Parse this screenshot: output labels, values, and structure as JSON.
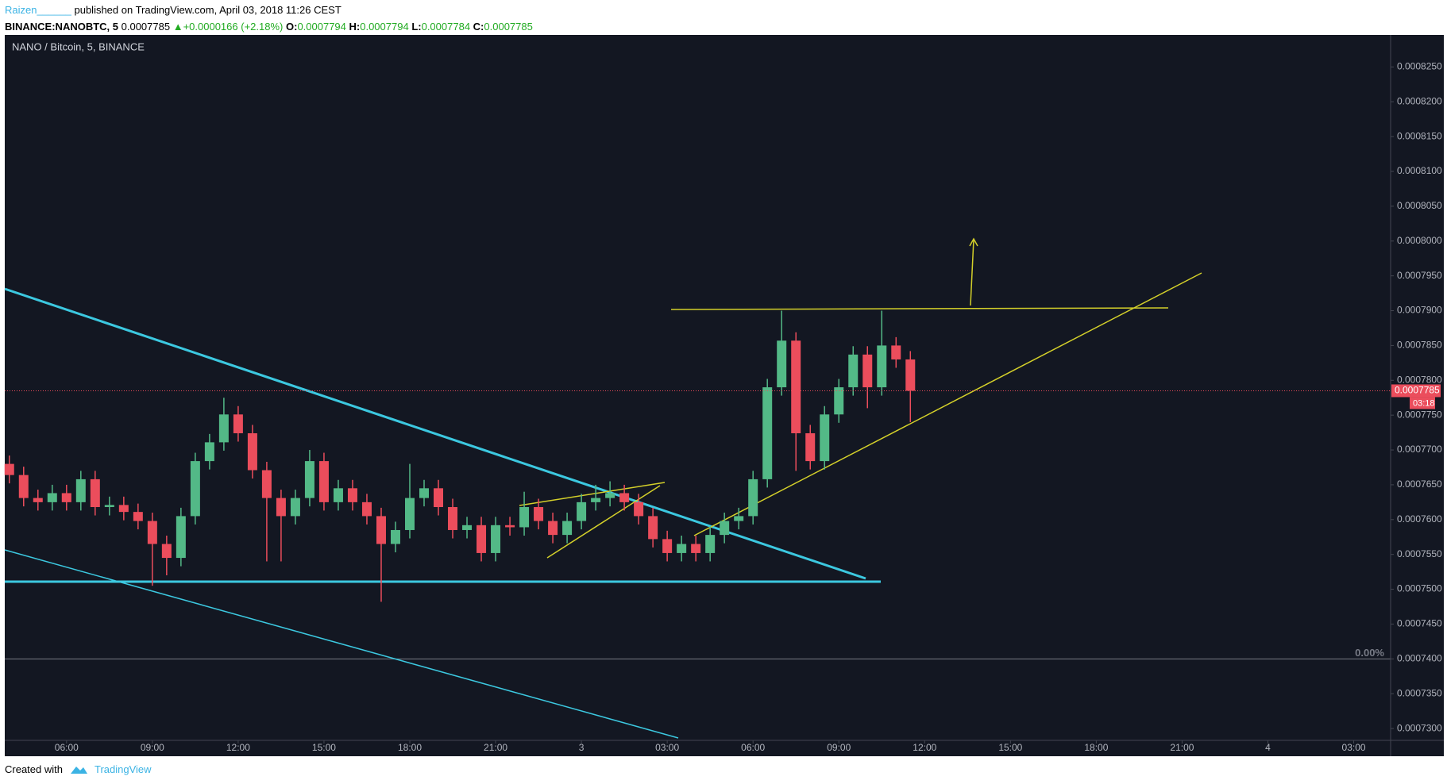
{
  "header": {
    "author": "Raizen______",
    "published": "published on TradingView.com, April 03, 2018 11:26 CEST",
    "symbol": "BINANCE:NANOBTC, 5",
    "last": "0.0007785",
    "arrow": "▲",
    "change": "+0.0000166 (+2.18%)",
    "o_label": "O:",
    "o": "0.0007794",
    "h_label": "H:",
    "h": "0.0007794",
    "l_label": "L:",
    "l": "0.0007784",
    "c_label": "C:",
    "c": "0.0007785"
  },
  "chart_data": {
    "type": "candlestick",
    "title": "NANO / Bitcoin, 5, BINANCE",
    "up_color": "#53b987",
    "down_color": "#eb4d5c",
    "x": [
      4.0,
      4.5,
      5.0,
      5.5,
      6.0,
      6.5,
      7.0,
      7.5,
      8.0,
      8.5,
      9.0,
      9.5,
      10.0,
      10.5,
      11.0,
      11.5,
      12.0,
      12.5,
      13.0,
      13.5,
      14.0,
      14.5,
      15.0,
      15.5,
      16.0,
      16.5,
      17.0,
      17.5,
      18.0,
      18.5,
      19.0,
      19.5,
      20.0,
      20.5,
      21.0,
      21.5,
      22.0,
      22.5,
      23.0,
      23.5,
      24.0,
      24.5,
      25.0,
      25.5,
      26.0,
      26.5,
      27.0,
      27.5,
      28.0,
      28.5,
      29.0,
      29.5,
      30.0,
      30.5,
      31.0,
      31.5,
      32.0,
      32.5,
      33.0,
      33.5,
      34.0,
      34.5,
      35.0,
      35.5
    ],
    "open": [
      0.000768,
      0.0007664,
      0.0007631,
      0.0007625,
      0.0007638,
      0.0007625,
      0.0007658,
      0.0007618,
      0.0007621,
      0.0007611,
      0.0007598,
      0.0007565,
      0.0007545,
      0.0007605,
      0.0007684,
      0.0007711,
      0.0007751,
      0.0007724,
      0.0007671,
      0.0007631,
      0.0007605,
      0.0007631,
      0.0007684,
      0.0007625,
      0.0007645,
      0.0007625,
      0.0007605,
      0.0007565,
      0.0007585,
      0.0007631,
      0.0007645,
      0.0007618,
      0.0007585,
      0.0007592,
      0.0007552,
      0.0007592,
      0.0007589,
      0.0007618,
      0.0007598,
      0.0007578,
      0.0007598,
      0.0007625,
      0.0007631,
      0.0007638,
      0.0007625,
      0.0007605,
      0.0007572,
      0.0007552,
      0.0007565,
      0.0007552,
      0.0007578,
      0.0007598,
      0.0007605,
      0.0007658,
      0.000779,
      0.0007857,
      0.0007724,
      0.0007684,
      0.0007751,
      0.000779,
      0.0007837,
      0.000779,
      0.000785,
      0.000783
    ],
    "high": [
      0.0007692,
      0.0007676,
      0.0007643,
      0.000765,
      0.000765,
      0.000767,
      0.000767,
      0.0007633,
      0.0007633,
      0.0007623,
      0.000761,
      0.0007577,
      0.0007617,
      0.0007696,
      0.0007723,
      0.0007775,
      0.0007763,
      0.0007736,
      0.0007683,
      0.0007643,
      0.0007643,
      0.00077,
      0.0007696,
      0.0007657,
      0.0007657,
      0.0007637,
      0.0007617,
      0.0007597,
      0.000768,
      0.0007657,
      0.0007657,
      0.000763,
      0.0007604,
      0.0007604,
      0.0007604,
      0.0007604,
      0.000764,
      0.000763,
      0.000761,
      0.000761,
      0.0007637,
      0.000765,
      0.0007655,
      0.000765,
      0.0007637,
      0.0007617,
      0.0007584,
      0.0007577,
      0.0007577,
      0.000759,
      0.000761,
      0.0007617,
      0.000767,
      0.0007802,
      0.00079,
      0.0007869,
      0.0007736,
      0.0007763,
      0.0007802,
      0.0007849,
      0.0007849,
      0.00079,
      0.0007862,
      0.0007842
    ],
    "low": [
      0.0007652,
      0.0007619,
      0.0007613,
      0.0007613,
      0.0007613,
      0.0007613,
      0.0007606,
      0.0007606,
      0.0007599,
      0.0007586,
      0.0007505,
      0.000752,
      0.0007533,
      0.0007593,
      0.0007672,
      0.0007699,
      0.0007712,
      0.0007659,
      0.000754,
      0.000754,
      0.0007593,
      0.0007619,
      0.0007613,
      0.0007613,
      0.0007613,
      0.0007593,
      0.0007482,
      0.0007553,
      0.0007573,
      0.0007619,
      0.0007606,
      0.0007573,
      0.0007573,
      0.000754,
      0.000754,
      0.0007577,
      0.0007577,
      0.0007586,
      0.0007566,
      0.0007566,
      0.0007586,
      0.0007613,
      0.0007619,
      0.0007613,
      0.0007593,
      0.000756,
      0.000754,
      0.000754,
      0.000754,
      0.000754,
      0.0007566,
      0.0007586,
      0.0007593,
      0.0007646,
      0.0007778,
      0.000767,
      0.0007672,
      0.0007672,
      0.0007739,
      0.0007778,
      0.000776,
      0.0007778,
      0.0007818,
      0.000774
    ],
    "close": [
      0.0007664,
      0.0007631,
      0.0007625,
      0.0007638,
      0.0007625,
      0.0007658,
      0.0007618,
      0.0007621,
      0.0007611,
      0.0007598,
      0.0007565,
      0.0007545,
      0.0007605,
      0.0007684,
      0.0007711,
      0.0007751,
      0.0007724,
      0.0007671,
      0.0007631,
      0.0007605,
      0.0007631,
      0.0007684,
      0.0007625,
      0.0007645,
      0.0007625,
      0.0007605,
      0.0007565,
      0.0007585,
      0.0007631,
      0.0007645,
      0.0007618,
      0.0007585,
      0.0007592,
      0.0007552,
      0.0007592,
      0.0007589,
      0.0007618,
      0.0007598,
      0.0007578,
      0.0007598,
      0.0007625,
      0.0007631,
      0.0007638,
      0.0007625,
      0.0007605,
      0.0007572,
      0.0007552,
      0.0007565,
      0.0007552,
      0.0007578,
      0.0007598,
      0.0007605,
      0.0007658,
      0.000779,
      0.0007857,
      0.0007724,
      0.0007684,
      0.0007751,
      0.000779,
      0.0007837,
      0.000779,
      0.000785,
      0.000783,
      0.0007785
    ],
    "xlim": [
      3.84,
      52.29
    ],
    "xticks": [
      {
        "value": 6,
        "label": "06:00"
      },
      {
        "value": 9,
        "label": "09:00"
      },
      {
        "value": 12,
        "label": "12:00"
      },
      {
        "value": 15,
        "label": "15:00"
      },
      {
        "value": 18,
        "label": "18:00"
      },
      {
        "value": 21,
        "label": "21:00"
      },
      {
        "value": 24,
        "label": "3"
      },
      {
        "value": 27,
        "label": "03:00"
      },
      {
        "value": 30,
        "label": "06:00"
      },
      {
        "value": 33,
        "label": "09:00"
      },
      {
        "value": 36,
        "label": "12:00"
      },
      {
        "value": 39,
        "label": "15:00"
      },
      {
        "value": 42,
        "label": "18:00"
      },
      {
        "value": 45,
        "label": "21:00"
      },
      {
        "value": 48,
        "label": "4"
      },
      {
        "value": 51,
        "label": "03:00"
      }
    ],
    "ylim": [
      0.0007283,
      0.0008296
    ],
    "yticks": [
      {
        "value": 0.00073,
        "label": "0.0007300"
      },
      {
        "value": 0.000735,
        "label": "0.0007350"
      },
      {
        "value": 0.00074,
        "label": "0.0007400"
      },
      {
        "value": 0.000745,
        "label": "0.0007450"
      },
      {
        "value": 0.00075,
        "label": "0.0007500"
      },
      {
        "value": 0.000755,
        "label": "0.0007550"
      },
      {
        "value": 0.00076,
        "label": "0.0007600"
      },
      {
        "value": 0.000765,
        "label": "0.0007650"
      },
      {
        "value": 0.00077,
        "label": "0.0007700"
      },
      {
        "value": 0.000775,
        "label": "0.0007750"
      },
      {
        "value": 0.00078,
        "label": "0.0007800"
      },
      {
        "value": 0.000785,
        "label": "0.0007850"
      },
      {
        "value": 0.00079,
        "label": "0.0007900"
      },
      {
        "value": 0.000795,
        "label": "0.0007950"
      },
      {
        "value": 0.0008,
        "label": "0.0008000"
      },
      {
        "value": 0.000805,
        "label": "0.0008050"
      },
      {
        "value": 0.00081,
        "label": "0.0008100"
      },
      {
        "value": 0.000815,
        "label": "0.0008150"
      },
      {
        "value": 0.00082,
        "label": "0.0008200"
      },
      {
        "value": 0.000825,
        "label": "0.0008250"
      }
    ],
    "last_price": 0.0007785,
    "countdown": "03:18",
    "level": {
      "value": 0.00074,
      "label": "0.00%"
    }
  },
  "footer": {
    "created": "Created with",
    "brand": "TradingView"
  }
}
